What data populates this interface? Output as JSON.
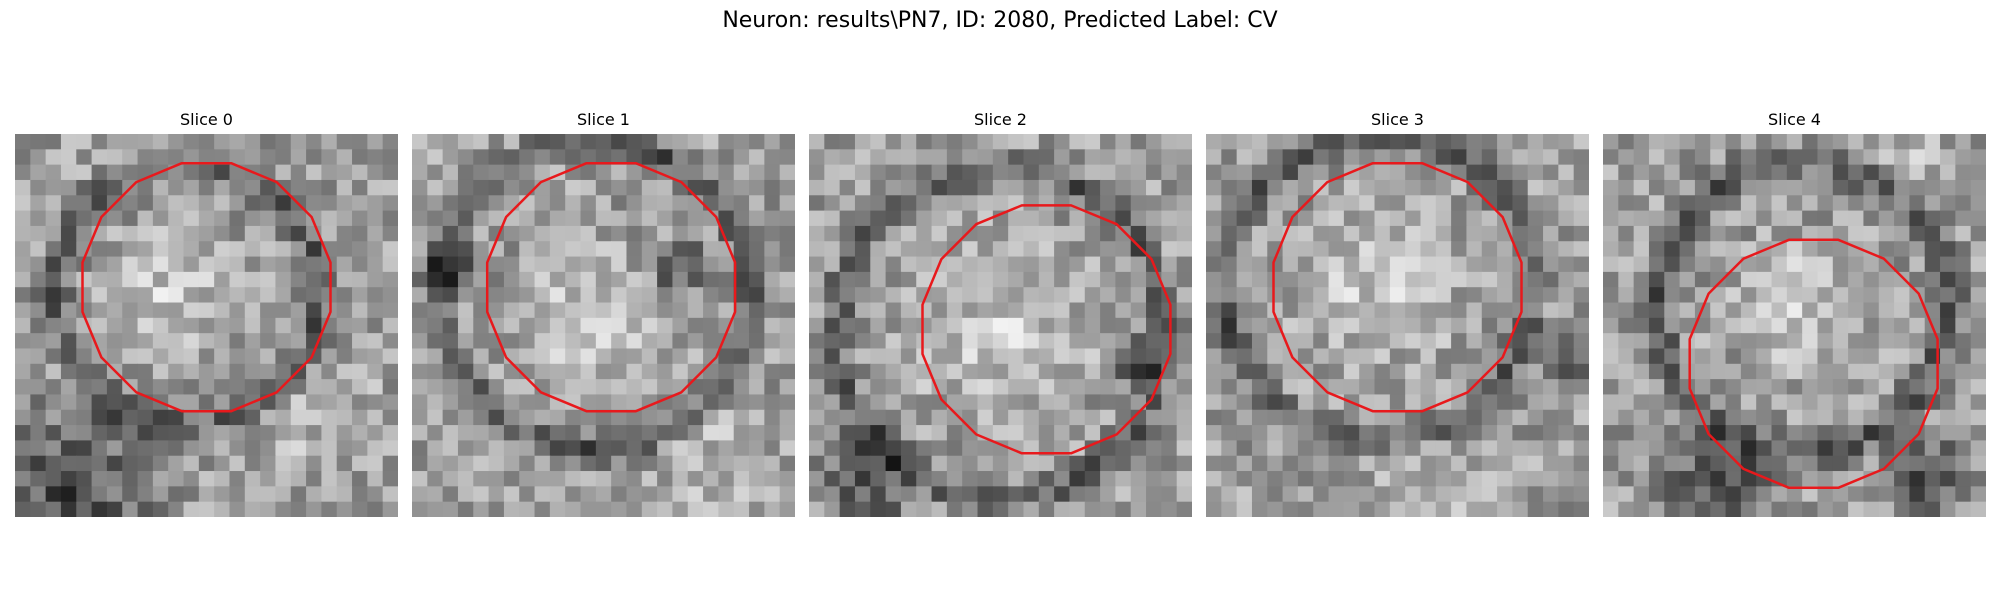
{
  "figure": {
    "title": "Neuron: results\\PN7, ID: 2080, Predicted Label: CV"
  },
  "panels": [
    {
      "title": "Slice 0"
    },
    {
      "title": "Slice 1"
    },
    {
      "title": "Slice 2"
    },
    {
      "title": "Slice 3"
    },
    {
      "title": "Slice 4"
    }
  ],
  "colors": {
    "contour": "#e8191c",
    "background": "#ffffff"
  }
}
